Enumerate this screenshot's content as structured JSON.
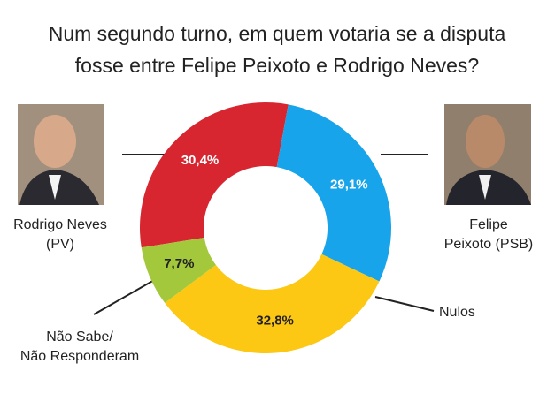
{
  "chart_data": {
    "type": "donut",
    "title": [
      "Num segundo turno, em quem votaria se a disputa",
      "fosse entre Felipe Peixoto e Rodrigo Neves?"
    ],
    "categories": [
      [
        "Rodrigo Neves",
        "(PV)"
      ],
      [
        "Felipe",
        "Peixoto (PSB)"
      ],
      [
        "Nulos"
      ],
      [
        "Não Sabe/",
        "Não Responderam"
      ]
    ],
    "values": [
      30.4,
      29.1,
      32.8,
      7.7
    ],
    "value_labels": [
      "30,4%",
      "29,1%",
      "32,8%",
      "7,7%"
    ],
    "colors": [
      "#d7262f",
      "#18a4ea",
      "#fcc813",
      "#a3c83c"
    ],
    "label_colors": [
      "#ffffff",
      "#ffffff",
      "#222222",
      "#222222"
    ]
  }
}
